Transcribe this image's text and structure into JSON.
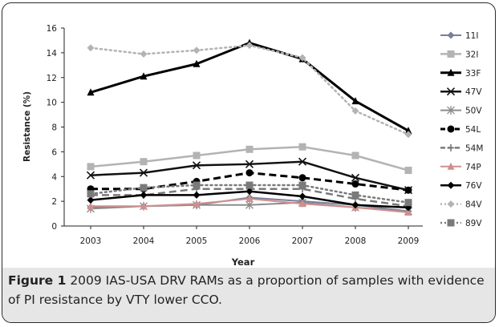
{
  "figure": {
    "label": "Figure 1",
    "caption": "2009 IAS-USA DRV RAMs as a proportion of samples with evidence of PI resistance by VTY lower CCO."
  },
  "chart_data": {
    "type": "line",
    "x": [
      "2003",
      "2004",
      "2005",
      "2006",
      "2007",
      "2008",
      "2009"
    ],
    "xlabel": "Year",
    "ylabel": "Resistance (%)",
    "ylim": [
      0,
      16
    ],
    "yticks": [
      "0",
      "2",
      "4",
      "6",
      "8",
      "10",
      "12",
      "14",
      "16"
    ],
    "legend_position": "right",
    "grid": false,
    "series": [
      {
        "name": "11I",
        "values": [
          1.5,
          1.6,
          1.7,
          2.3,
          2.0,
          1.7,
          1.2
        ],
        "color": "#7a7f9a",
        "marker": "diamond",
        "dash": "solid",
        "width": 2
      },
      {
        "name": "32I",
        "values": [
          4.8,
          5.2,
          5.7,
          6.2,
          6.4,
          5.7,
          4.5
        ],
        "color": "#b3b3b3",
        "marker": "square",
        "dash": "solid",
        "width": 2.5
      },
      {
        "name": "33F",
        "values": [
          10.8,
          12.1,
          13.1,
          14.8,
          13.5,
          10.1,
          7.7
        ],
        "color": "#000000",
        "marker": "triangle",
        "dash": "solid",
        "width": 3
      },
      {
        "name": "47V",
        "values": [
          4.1,
          4.3,
          4.9,
          5.0,
          5.2,
          3.9,
          2.9
        ],
        "color": "#111111",
        "marker": "x",
        "dash": "solid",
        "width": 2.5
      },
      {
        "name": "50V",
        "values": [
          1.4,
          1.6,
          1.7,
          1.7,
          1.9,
          1.5,
          1.2
        ],
        "color": "#8c8c8c",
        "marker": "asterisk",
        "dash": "solid",
        "width": 2
      },
      {
        "name": "54L",
        "values": [
          3.0,
          3.0,
          3.6,
          4.3,
          3.9,
          3.4,
          2.9
        ],
        "color": "#000000",
        "marker": "circle",
        "dash": "long",
        "width": 3
      },
      {
        "name": "54M",
        "values": [
          2.5,
          2.5,
          3.0,
          3.0,
          3.0,
          2.2,
          1.6
        ],
        "color": "#7a7a7a",
        "marker": "plus",
        "dash": "long",
        "width": 2.5
      },
      {
        "name": "74P",
        "values": [
          1.6,
          1.6,
          1.8,
          2.2,
          1.8,
          1.5,
          1.1
        ],
        "color": "#d08f8f",
        "marker": "triangle",
        "dash": "solid",
        "width": 2
      },
      {
        "name": "76V",
        "values": [
          2.1,
          2.5,
          2.5,
          2.8,
          2.4,
          1.7,
          1.5
        ],
        "color": "#000000",
        "marker": "diamond",
        "dash": "solid",
        "width": 2.5
      },
      {
        "name": "84V",
        "values": [
          14.4,
          13.9,
          14.2,
          14.6,
          13.6,
          9.3,
          7.4
        ],
        "color": "#b3b3b3",
        "marker": "diamond",
        "dash": "dot",
        "width": 2.5
      },
      {
        "name": "89V",
        "values": [
          2.6,
          3.1,
          3.3,
          3.3,
          3.3,
          2.5,
          1.9
        ],
        "color": "#7a7a7a",
        "marker": "square",
        "dash": "dot",
        "width": 2.5
      }
    ]
  }
}
